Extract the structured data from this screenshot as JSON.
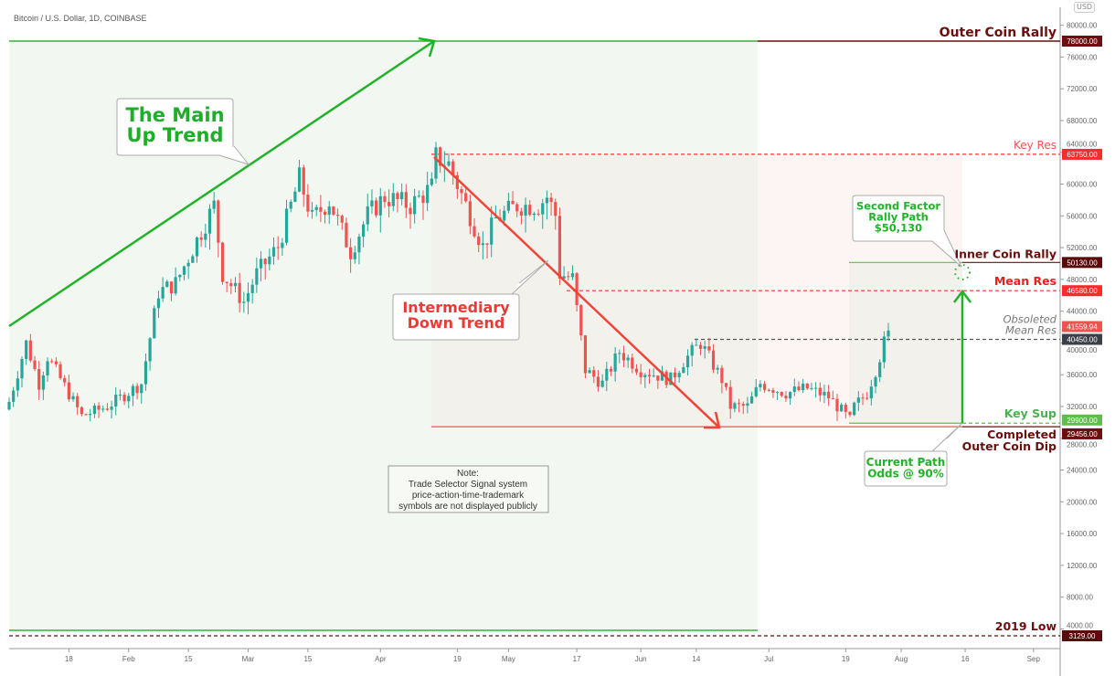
{
  "header": {
    "title": "Bitcoin / U.S. Dollar, 1D, COINBASE",
    "currency": "USD"
  },
  "chart_data": {
    "type": "candlestick",
    "title": "Bitcoin / U.S. Dollar, 1D, COINBASE",
    "ylim": [
      3129,
      80000
    ],
    "y_ticks": [
      80000,
      76000,
      72000,
      68000,
      64000,
      60000,
      56000,
      52000,
      48000,
      44000,
      40000,
      36000,
      32000,
      28000,
      24000,
      20000,
      16000,
      12000,
      8000,
      4000
    ],
    "x_ticks": [
      {
        "label": "18",
        "date": "2021-01-18"
      },
      {
        "label": "Feb",
        "date": "2021-02-01"
      },
      {
        "label": "15",
        "date": "2021-02-15"
      },
      {
        "label": "Mar",
        "date": "2021-03-01"
      },
      {
        "label": "15",
        "date": "2021-03-15"
      },
      {
        "label": "Apr",
        "date": "2021-04-01"
      },
      {
        "label": "19",
        "date": "2021-04-19"
      },
      {
        "label": "May",
        "date": "2021-05-01"
      },
      {
        "label": "17",
        "date": "2021-05-17"
      },
      {
        "label": "Jun",
        "date": "2021-06-01"
      },
      {
        "label": "14",
        "date": "2021-06-14"
      },
      {
        "label": "Jul",
        "date": "2021-07-01"
      },
      {
        "label": "19",
        "date": "2021-07-19"
      },
      {
        "label": "Aug",
        "date": "2021-08-01"
      },
      {
        "label": "16",
        "date": "2021-08-16"
      },
      {
        "label": "Sep",
        "date": "2021-09-01"
      }
    ],
    "xlim": [
      "2021-01-04",
      "2021-09-07"
    ],
    "approx_close_path": [
      [
        "2021-01-04",
        32600
      ],
      [
        "2021-01-08",
        40000
      ],
      [
        "2021-01-11",
        34900
      ],
      [
        "2021-01-13",
        38300
      ],
      [
        "2021-01-21",
        30800
      ],
      [
        "2021-01-27",
        32000
      ],
      [
        "2021-02-04",
        34900
      ],
      [
        "2021-02-08",
        46400
      ],
      [
        "2021-02-12",
        47500
      ],
      [
        "2021-02-21",
        57300
      ],
      [
        "2021-02-23",
        48700
      ],
      [
        "2021-02-28",
        45200
      ],
      [
        "2021-03-03",
        48700
      ],
      [
        "2021-03-08",
        52100
      ],
      [
        "2021-03-13",
        60700
      ],
      [
        "2021-03-16",
        55600
      ],
      [
        "2021-03-20",
        57900
      ],
      [
        "2021-03-25",
        51500
      ],
      [
        "2021-03-29",
        56100
      ],
      [
        "2021-04-02",
        58400
      ],
      [
        "2021-04-08",
        57300
      ],
      [
        "2021-04-13",
        59600
      ],
      [
        "2021-04-14",
        63400
      ],
      [
        "2021-04-17",
        62500
      ],
      [
        "2021-04-22",
        56100
      ],
      [
        "2021-04-25",
        52100
      ],
      [
        "2021-04-28",
        55600
      ],
      [
        "2021-05-03",
        57300
      ],
      [
        "2021-05-08",
        57300
      ],
      [
        "2021-05-10",
        58400
      ],
      [
        "2021-05-12",
        56100
      ],
      [
        "2021-05-13",
        48700
      ],
      [
        "2021-05-16",
        48100
      ],
      [
        "2021-05-19",
        36600
      ],
      [
        "2021-05-23",
        34900
      ],
      [
        "2021-05-27",
        38900
      ],
      [
        "2021-06-01",
        36600
      ],
      [
        "2021-06-08",
        35400
      ],
      [
        "2021-06-11",
        37700
      ],
      [
        "2021-06-15",
        40000
      ],
      [
        "2021-06-20",
        35400
      ],
      [
        "2021-06-22",
        32000
      ],
      [
        "2021-06-26",
        32000
      ],
      [
        "2021-06-29",
        34900
      ],
      [
        "2021-07-05",
        33700
      ],
      [
        "2021-07-10",
        34300
      ],
      [
        "2021-07-15",
        33200
      ],
      [
        "2021-07-20",
        30300
      ],
      [
        "2021-07-21",
        32000
      ],
      [
        "2021-07-24",
        33700
      ],
      [
        "2021-07-26",
        36600
      ],
      [
        "2021-07-28",
        40000
      ],
      [
        "2021-07-29",
        41559.94
      ]
    ],
    "levels": [
      {
        "name": "Outer Coin Rally",
        "price": 78000,
        "label": "78000.00",
        "color": "#6b0f0f",
        "text_color": "#6b0f0f"
      },
      {
        "name": "Key Res",
        "price": 63750,
        "label": "63750.00",
        "color": "#ff2a2a",
        "text_color": "#ef5350"
      },
      {
        "name": "Inner Coin Rally",
        "price": 50130,
        "label": "50130.00",
        "color": "#6b0f0f",
        "text_color": "#6b0f0f"
      },
      {
        "name": "Mean Res",
        "price": 46580,
        "label": "46580.00",
        "color": "#ff2a2a",
        "text_color": "#e82020"
      },
      {
        "name": "Obsoleted Mean Res",
        "price": 40450,
        "label": "40450.00",
        "color": "#3c3f47",
        "text_color": "#777"
      },
      {
        "name": "Key Sup",
        "price": 29900,
        "label": "29900.00",
        "color": "#5cbf4a",
        "text_color": "#4caf50"
      },
      {
        "name": "Completed Outer Coin Dip",
        "price": 29456,
        "label": "29456.00",
        "color": "#6b0f0f",
        "text_color": "#6b0f0f"
      },
      {
        "name": "2019 Low",
        "price": 3129,
        "label": "3129.00",
        "color": "#6b0f0f",
        "text_color": "#6b0f0f"
      }
    ],
    "last_price": {
      "price": 41559.94,
      "label": "41559.94",
      "color": "#ef5350"
    },
    "annotations": {
      "main_trend": [
        "The Main",
        "Up Trend"
      ],
      "down_trend": [
        "Intermediary",
        "Down Trend"
      ],
      "second_factor": [
        "Second Factor",
        "Rally Path",
        "$50,130"
      ],
      "current_path": [
        "Current Path",
        "Odds @ 90%"
      ],
      "obsoleted": [
        "Obsoleted",
        "Mean Res"
      ],
      "completed": [
        "Completed",
        "Outer Coin Dip"
      ],
      "note": [
        "Note:",
        "Trade Selector Signal system",
        "price-action-time-trademark",
        "symbols are not displayed publicly"
      ]
    },
    "colors": {
      "up": "#26a69a",
      "down": "#ef5350",
      "trend_up": "#22b22a",
      "trend_down": "#f04438"
    }
  }
}
